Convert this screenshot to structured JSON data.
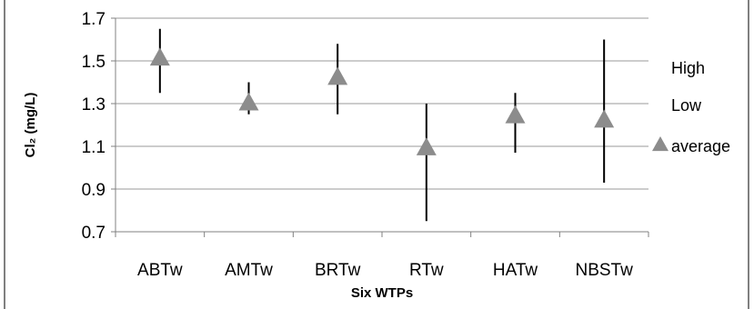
{
  "chart_data": {
    "type": "scatter",
    "categories": [
      "ABTw",
      "AMTw",
      "BRTw",
      "RTw",
      "HATw",
      "NBSTw"
    ],
    "series": [
      {
        "name": "High",
        "values": [
          1.65,
          1.4,
          1.58,
          1.3,
          1.35,
          1.6
        ]
      },
      {
        "name": "Low",
        "values": [
          1.35,
          1.25,
          1.25,
          0.75,
          1.07,
          0.93
        ]
      },
      {
        "name": "average",
        "values": [
          1.51,
          1.3,
          1.42,
          1.09,
          1.24,
          1.22
        ]
      }
    ],
    "xlabel": "Six WTPs",
    "ylabel": "Cl₂ (mg/L)",
    "ylim": [
      0.7,
      1.7
    ],
    "yticks": [
      "0.7",
      "0.9",
      "1.1",
      "1.3",
      "1.5",
      "1.7"
    ],
    "grid": true,
    "legend": "right",
    "colors": {
      "marker": "#8c8c8c",
      "line": "#000000",
      "grid": "#999999"
    }
  }
}
